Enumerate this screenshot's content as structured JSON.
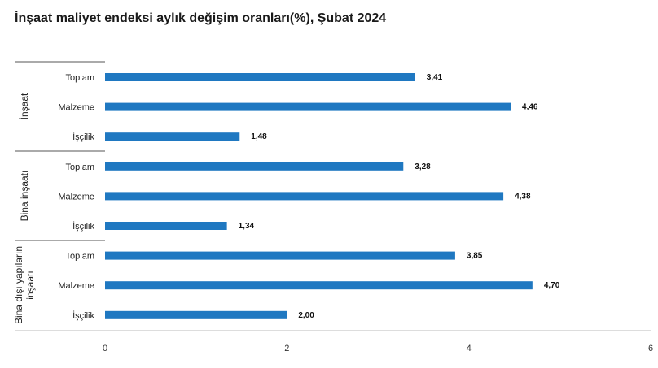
{
  "chart_data": {
    "type": "bar",
    "orientation": "horizontal",
    "title": "İnşaat maliyet endeksi aylık değişim oranları(%), Şubat 2024",
    "xlim": [
      0,
      6
    ],
    "xticks": [
      "0",
      "2",
      "4",
      "6"
    ],
    "grid": false,
    "bar_color": "#1f78c1",
    "groups": [
      {
        "label_lines": [
          "İnşaat"
        ],
        "categories": [
          "Toplam",
          "Malzeme",
          "İşçilik"
        ],
        "values": [
          3.41,
          4.46,
          1.48
        ],
        "value_labels": [
          "3,41",
          "4,46",
          "1,48"
        ]
      },
      {
        "label_lines": [
          "Bina inşaatı"
        ],
        "categories": [
          "Toplam",
          "Malzeme",
          "İşçilik"
        ],
        "values": [
          3.28,
          4.38,
          1.34
        ],
        "value_labels": [
          "3,28",
          "4,38",
          "1,34"
        ]
      },
      {
        "label_lines": [
          "Bina dışı yapıların",
          "inşaatı"
        ],
        "categories": [
          "Toplam",
          "Malzeme",
          "İşçilik"
        ],
        "values": [
          3.85,
          4.7,
          2.0
        ],
        "value_labels": [
          "3,85",
          "4,70",
          "2,00"
        ]
      }
    ]
  }
}
